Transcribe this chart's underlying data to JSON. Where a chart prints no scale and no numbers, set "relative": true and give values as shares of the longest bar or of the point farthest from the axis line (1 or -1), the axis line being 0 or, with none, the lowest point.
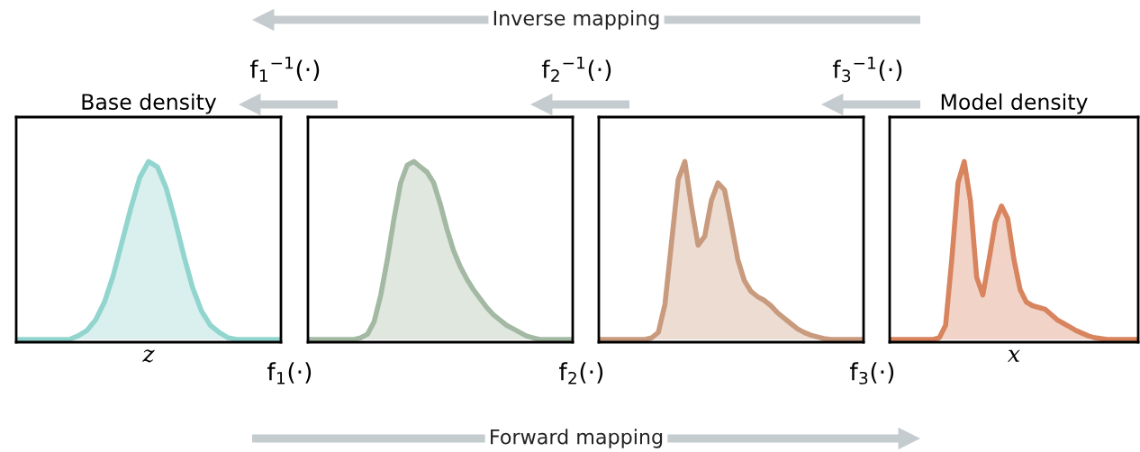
{
  "chart_data": [
    {
      "type": "area",
      "relative": true,
      "title": "Base density",
      "xlabel": "z",
      "color": "#92d5cf",
      "categories": [
        null,
        null,
        null,
        null,
        null,
        null,
        null,
        null,
        null,
        null,
        null,
        null,
        null,
        null,
        null,
        null,
        null,
        null,
        null,
        null,
        null,
        null,
        null,
        null,
        null,
        null,
        null,
        null,
        null,
        null,
        null
      ],
      "values": [
        0,
        0,
        0,
        0,
        0,
        0,
        0,
        0.02,
        0.05,
        0.11,
        0.21,
        0.36,
        0.55,
        0.74,
        0.91,
        1.0,
        0.97,
        0.85,
        0.67,
        0.47,
        0.29,
        0.16,
        0.08,
        0.04,
        0.01,
        0,
        0,
        0,
        0,
        0,
        0
      ],
      "annotations": [
        "Inverse mapping",
        "Forward mapping",
        "f$_{1}$$^{−1}$(·)",
        "f$_{1}$(·)"
      ]
    },
    {
      "type": "area",
      "relative": true,
      "color": "#a3b9a3",
      "categories": [
        null,
        null,
        null,
        null,
        null,
        null,
        null,
        null,
        null,
        null,
        null,
        null,
        null,
        null,
        null,
        null,
        null,
        null,
        null,
        null,
        null,
        null,
        null,
        null,
        null,
        null,
        null,
        null,
        null,
        null,
        null,
        null,
        null,
        null,
        null,
        null,
        null,
        null,
        null,
        null,
        null
      ],
      "values": [
        0,
        0,
        0,
        0,
        0,
        0,
        0,
        0,
        0.01,
        0.03,
        0.1,
        0.25,
        0.45,
        0.68,
        0.88,
        0.98,
        1.0,
        0.97,
        0.94,
        0.88,
        0.76,
        0.62,
        0.5,
        0.41,
        0.34,
        0.28,
        0.23,
        0.18,
        0.14,
        0.11,
        0.08,
        0.06,
        0.04,
        0.02,
        0.01,
        0,
        0,
        0,
        0,
        0,
        0
      ],
      "annotations": [
        "f$_{2}$$^{−1}$(·)",
        "f$_{2}$(·)"
      ]
    },
    {
      "type": "area",
      "relative": true,
      "color": "#c89a7e",
      "categories": [
        null,
        null,
        null,
        null,
        null,
        null,
        null,
        null,
        null,
        null,
        null,
        null,
        null,
        null,
        null,
        null,
        null,
        null,
        null,
        null,
        null,
        null,
        null,
        null,
        null,
        null,
        null,
        null,
        null,
        null,
        null,
        null,
        null,
        null,
        null,
        null,
        null,
        null,
        null,
        null,
        null
      ],
      "values": [
        0,
        0,
        0,
        0,
        0,
        0,
        0,
        0,
        0.01,
        0.04,
        0.2,
        0.55,
        0.9,
        1.0,
        0.75,
        0.53,
        0.58,
        0.78,
        0.88,
        0.84,
        0.65,
        0.45,
        0.33,
        0.27,
        0.24,
        0.22,
        0.19,
        0.15,
        0.12,
        0.09,
        0.06,
        0.04,
        0.025,
        0.015,
        0.005,
        0,
        0,
        0,
        0,
        0,
        0
      ],
      "annotations": [
        "f$_{3}$$^{−1}$(·)",
        "f$_{3}$(·)"
      ]
    },
    {
      "type": "area",
      "relative": true,
      "title": "Model density",
      "xlabel": "x",
      "color": "#d8845f",
      "categories": [
        null,
        null,
        null,
        null,
        null,
        null,
        null,
        null,
        null,
        null,
        null,
        null,
        null,
        null,
        null,
        null,
        null,
        null,
        null,
        null,
        null,
        null,
        null,
        null,
        null,
        null,
        null,
        null,
        null,
        null,
        null,
        null,
        null,
        null,
        null,
        null,
        null,
        null,
        null,
        null,
        null
      ],
      "values": [
        0,
        0,
        0,
        0,
        0,
        0,
        0,
        0,
        0.01,
        0.08,
        0.45,
        0.88,
        1.0,
        0.78,
        0.35,
        0.25,
        0.45,
        0.66,
        0.75,
        0.68,
        0.45,
        0.28,
        0.21,
        0.19,
        0.18,
        0.17,
        0.14,
        0.11,
        0.09,
        0.07,
        0.05,
        0.035,
        0.02,
        0.01,
        0.005,
        0,
        0,
        0,
        0,
        0,
        0
      ]
    }
  ]
}
